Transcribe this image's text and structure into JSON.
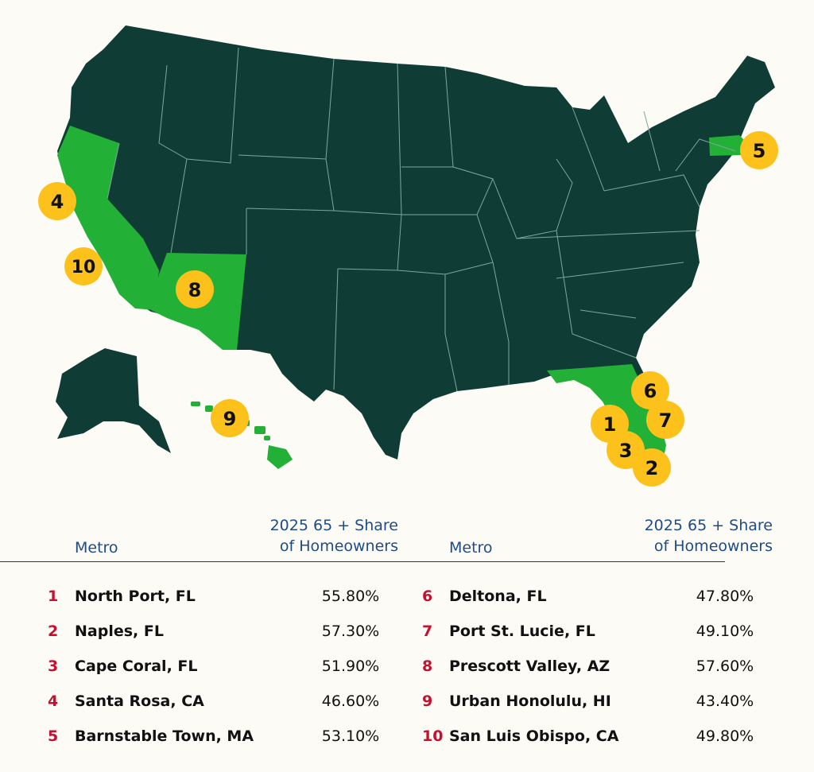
{
  "map": {
    "colors": {
      "base": "#0f3d35",
      "highlight": "#22b036",
      "border": "#7fa79c",
      "badge": "#fcc21b"
    },
    "badges": [
      "1",
      "2",
      "3",
      "4",
      "5",
      "6",
      "7",
      "8",
      "9",
      "10"
    ]
  },
  "table": {
    "metro_header": "Metro",
    "share_header_line1": "2025 65 + Share",
    "share_header_line2": "of Homeowners",
    "left": [
      {
        "rank": "1",
        "metro": "North Port, FL",
        "share": "55.80%"
      },
      {
        "rank": "2",
        "metro": "Naples, FL",
        "share": "57.30%"
      },
      {
        "rank": "3",
        "metro": "Cape Coral, FL",
        "share": "51.90%"
      },
      {
        "rank": "4",
        "metro": "Santa Rosa, CA",
        "share": "46.60%"
      },
      {
        "rank": "5",
        "metro": "Barnstable Town, MA",
        "share": "53.10%"
      }
    ],
    "right": [
      {
        "rank": "6",
        "metro": "Deltona, FL",
        "share": "47.80%"
      },
      {
        "rank": "7",
        "metro": "Port St. Lucie, FL",
        "share": "49.10%"
      },
      {
        "rank": "8",
        "metro": "Prescott Valley, AZ",
        "share": "57.60%"
      },
      {
        "rank": "9",
        "metro": "Urban Honolulu, HI",
        "share": "43.40%"
      },
      {
        "rank": "10",
        "metro": "San Luis Obispo, CA",
        "share": "49.80%"
      }
    ]
  }
}
